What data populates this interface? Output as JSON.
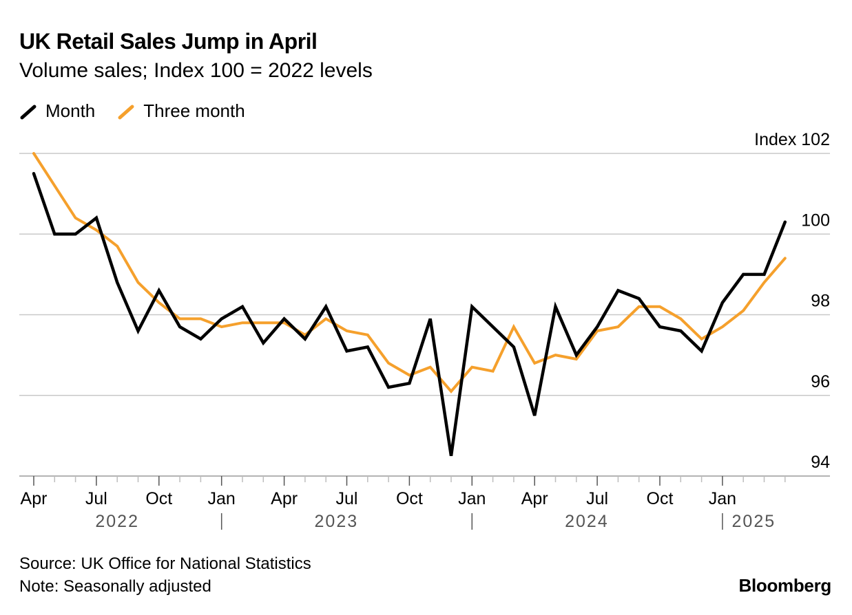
{
  "header": {
    "title": "UK Retail Sales Jump in April",
    "subtitle": "Volume sales; Index 100 = 2022 levels"
  },
  "legend": [
    {
      "label": "Month",
      "color": "#000000"
    },
    {
      "label": "Three month",
      "color": "#f5a02c"
    }
  ],
  "footer": {
    "source": "Source: UK Office for National Statistics",
    "note": "Note: Seasonally adjusted",
    "brand": "Bloomberg"
  },
  "chart_data": {
    "type": "line",
    "title": "UK Retail Sales Jump in April",
    "subtitle": "Volume sales; Index 100 = 2022 levels",
    "ylabel": "Index",
    "ylim": [
      94,
      102
    ],
    "yticks": [
      {
        "value": 102,
        "label": "Index 102"
      },
      {
        "value": 100,
        "label": "100"
      },
      {
        "value": 98,
        "label": "98"
      },
      {
        "value": 96,
        "label": "96"
      },
      {
        "value": 94,
        "label": "94"
      }
    ],
    "x": [
      "2022-04",
      "2022-05",
      "2022-06",
      "2022-07",
      "2022-08",
      "2022-09",
      "2022-10",
      "2022-11",
      "2022-12",
      "2023-01",
      "2023-02",
      "2023-03",
      "2023-04",
      "2023-05",
      "2023-06",
      "2023-07",
      "2023-08",
      "2023-09",
      "2023-10",
      "2023-11",
      "2023-12",
      "2024-01",
      "2024-02",
      "2024-03",
      "2024-04",
      "2024-05",
      "2024-06",
      "2024-07",
      "2024-08",
      "2024-09",
      "2024-10",
      "2024-11",
      "2024-12",
      "2025-01",
      "2025-02",
      "2025-03",
      "2025-04"
    ],
    "xticks": [
      {
        "x": "2022-04",
        "label": "Apr"
      },
      {
        "x": "2022-07",
        "label": "Jul"
      },
      {
        "x": "2022-10",
        "label": "Oct"
      },
      {
        "x": "2023-01",
        "label": "Jan"
      },
      {
        "x": "2023-04",
        "label": "Apr"
      },
      {
        "x": "2023-07",
        "label": "Jul"
      },
      {
        "x": "2023-10",
        "label": "Oct"
      },
      {
        "x": "2024-01",
        "label": "Jan"
      },
      {
        "x": "2024-04",
        "label": "Apr"
      },
      {
        "x": "2024-07",
        "label": "Jul"
      },
      {
        "x": "2024-10",
        "label": "Oct"
      },
      {
        "x": "2025-01",
        "label": "Jan"
      }
    ],
    "year_labels": [
      {
        "label": "2022",
        "start": "2022-04",
        "end": "2022-12"
      },
      {
        "label": "2023",
        "start": "2023-01",
        "end": "2023-12"
      },
      {
        "label": "2024",
        "start": "2024-01",
        "end": "2024-12"
      },
      {
        "label": "2025",
        "start": "2025-01",
        "end": "2025-04"
      }
    ],
    "series": [
      {
        "name": "Month",
        "color": "#000000",
        "values": [
          101.5,
          100.0,
          100.0,
          100.4,
          98.8,
          97.6,
          98.6,
          97.7,
          97.4,
          97.9,
          98.2,
          97.3,
          97.9,
          97.4,
          98.2,
          97.1,
          97.2,
          96.2,
          96.3,
          97.9,
          94.5,
          98.2,
          97.7,
          97.2,
          95.5,
          98.2,
          97.0,
          97.7,
          98.6,
          98.4,
          97.7,
          97.6,
          97.1,
          98.3,
          99.0,
          99.0,
          100.3
        ]
      },
      {
        "name": "Three month",
        "color": "#f5a02c",
        "values": [
          102.0,
          101.2,
          100.4,
          100.1,
          99.7,
          98.8,
          98.3,
          97.9,
          97.9,
          97.7,
          97.8,
          97.8,
          97.8,
          97.5,
          97.9,
          97.6,
          97.5,
          96.8,
          96.5,
          96.7,
          96.1,
          96.7,
          96.6,
          97.7,
          96.8,
          97.0,
          96.9,
          97.6,
          97.7,
          98.2,
          98.2,
          97.9,
          97.4,
          97.7,
          98.1,
          98.8,
          99.4
        ]
      }
    ],
    "grid": true,
    "legend_position": "top-left"
  }
}
